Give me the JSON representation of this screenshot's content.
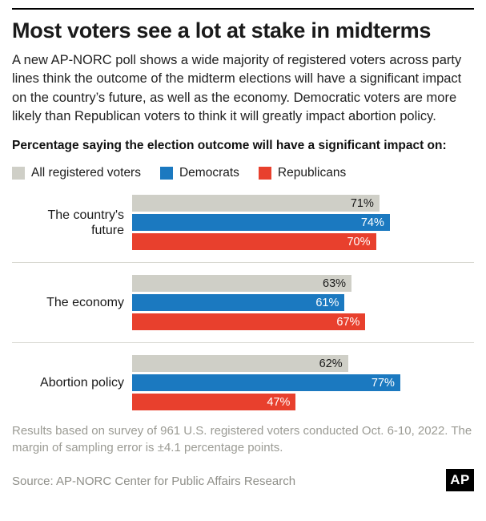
{
  "header": {
    "title": "Most voters see a lot at stake in midterms",
    "description": "A new AP-NORC poll shows a wide majority of registered voters across party lines think the outcome of the midterm elections will have a significant impact on the country’s future, as well as the economy. Democratic voters are more likely than Republican voters to think it will greatly impact abortion policy."
  },
  "legend": [
    {
      "label": "All registered voters",
      "color": "#cfcfc7"
    },
    {
      "label": "Democrats",
      "color": "#1b79c0"
    },
    {
      "label": "Republicans",
      "color": "#e8402d"
    }
  ],
  "chart_data": {
    "type": "bar",
    "orientation": "horizontal",
    "title": "Percentage saying the election outcome will have a significant impact on:",
    "categories": [
      "The country's future",
      "The economy",
      "Abortion policy"
    ],
    "series": [
      {
        "name": "All registered voters",
        "color": "#cfcfc7",
        "label_color": "#1a1a1a",
        "values": [
          71,
          63,
          62
        ]
      },
      {
        "name": "Democrats",
        "color": "#1b79c0",
        "label_color": "#ffffff",
        "values": [
          74,
          61,
          77
        ]
      },
      {
        "name": "Republicans",
        "color": "#e8402d",
        "label_color": "#ffffff",
        "values": [
          70,
          67,
          47
        ]
      }
    ],
    "xlim": [
      0,
      100
    ],
    "value_suffix": "%",
    "grid": false,
    "legend_position": "top"
  },
  "footer": {
    "note": "Results based on survey of 961 U.S. registered voters conducted Oct. 6-10, 2022. The margin of sampling error is ±4.1 percentage points.",
    "source": "Source: AP-NORC Center for Public Affairs Research",
    "logo": "AP"
  }
}
